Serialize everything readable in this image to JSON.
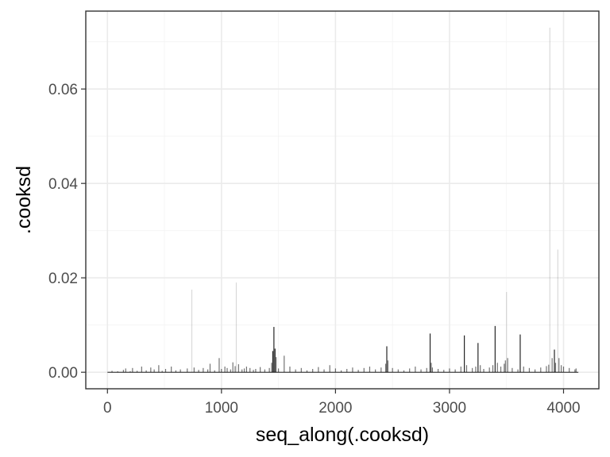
{
  "chart_data": {
    "type": "bar",
    "title": "",
    "xlabel": "seq_along(.cooksd)",
    "ylabel": ".cooksd",
    "xlim": [
      -190,
      4310
    ],
    "ylim": [
      -0.0035,
      0.0765
    ],
    "x_ticks": [
      0,
      1000,
      2000,
      3000,
      4000
    ],
    "x_tick_labels": [
      "0",
      "1000",
      "2000",
      "3000",
      "4000"
    ],
    "y_ticks": [
      0,
      0.02,
      0.04,
      0.06
    ],
    "y_tick_labels": [
      "0.00",
      "0.02",
      "0.04",
      "0.06"
    ],
    "grid": true,
    "legend": "none",
    "bar_color": "#000000",
    "series": [
      {
        "x": [
          40,
          90,
          140,
          160,
          200,
          220,
          260,
          300,
          340,
          380,
          410,
          450,
          480,
          510,
          560,
          600,
          640,
          700,
          740,
          760,
          800,
          840,
          880,
          900,
          940,
          980,
          1000,
          1030,
          1050,
          1080,
          1100,
          1120,
          1130,
          1150,
          1180,
          1200,
          1220,
          1250,
          1280,
          1300,
          1340,
          1380,
          1420,
          1440,
          1450,
          1460,
          1470,
          1480,
          1500,
          1550,
          1600,
          1650,
          1700,
          1750,
          1800,
          1850,
          1900,
          1950,
          2000,
          2050,
          2100,
          2150,
          2200,
          2250,
          2300,
          2350,
          2400,
          2440,
          2450,
          2460,
          2500,
          2550,
          2600,
          2650,
          2700,
          2750,
          2800,
          2830,
          2840,
          2850,
          2900,
          2950,
          3000,
          3050,
          3100,
          3130,
          3150,
          3200,
          3230,
          3250,
          3270,
          3300,
          3350,
          3380,
          3400,
          3420,
          3450,
          3480,
          3490,
          3500,
          3510,
          3550,
          3600,
          3620,
          3650,
          3700,
          3750,
          3800,
          3850,
          3870,
          3880,
          3900,
          3920,
          3930,
          3950,
          3960,
          3980,
          4000,
          4050,
          4100,
          4110
        ],
        "values": [
          0.0003,
          0.0002,
          0.0005,
          0.0008,
          0.0002,
          0.0009,
          0.0003,
          0.0012,
          0.0004,
          0.001,
          0.0006,
          0.0015,
          0.0003,
          0.0007,
          0.0012,
          0.0004,
          0.0006,
          0.0008,
          0.0175,
          0.001,
          0.0005,
          0.0009,
          0.0006,
          0.0018,
          0.0004,
          0.003,
          0.0007,
          0.0012,
          0.0009,
          0.0006,
          0.0021,
          0.0013,
          0.019,
          0.0017,
          0.0006,
          0.0008,
          0.0012,
          0.0009,
          0.0005,
          0.0007,
          0.0011,
          0.0006,
          0.0009,
          0.002,
          0.0045,
          0.0096,
          0.005,
          0.0032,
          0.0008,
          0.0035,
          0.0012,
          0.0006,
          0.0009,
          0.0004,
          0.0007,
          0.0011,
          0.0006,
          0.0015,
          0.0008,
          0.0004,
          0.0007,
          0.001,
          0.0005,
          0.0009,
          0.0012,
          0.0006,
          0.001,
          0.0018,
          0.0055,
          0.0025,
          0.0009,
          0.0006,
          0.0004,
          0.0008,
          0.0012,
          0.0006,
          0.0009,
          0.0082,
          0.002,
          0.001,
          0.0007,
          0.0005,
          0.0008,
          0.0006,
          0.0012,
          0.0078,
          0.0015,
          0.0009,
          0.0012,
          0.0062,
          0.0015,
          0.0007,
          0.001,
          0.0015,
          0.0098,
          0.002,
          0.0012,
          0.0018,
          0.0025,
          0.017,
          0.003,
          0.0009,
          0.0006,
          0.008,
          0.0012,
          0.0009,
          0.0006,
          0.001,
          0.0013,
          0.0016,
          0.073,
          0.003,
          0.0048,
          0.002,
          0.026,
          0.003,
          0.0015,
          0.0012,
          0.0009,
          0.0006,
          0.0008
        ]
      }
    ]
  }
}
